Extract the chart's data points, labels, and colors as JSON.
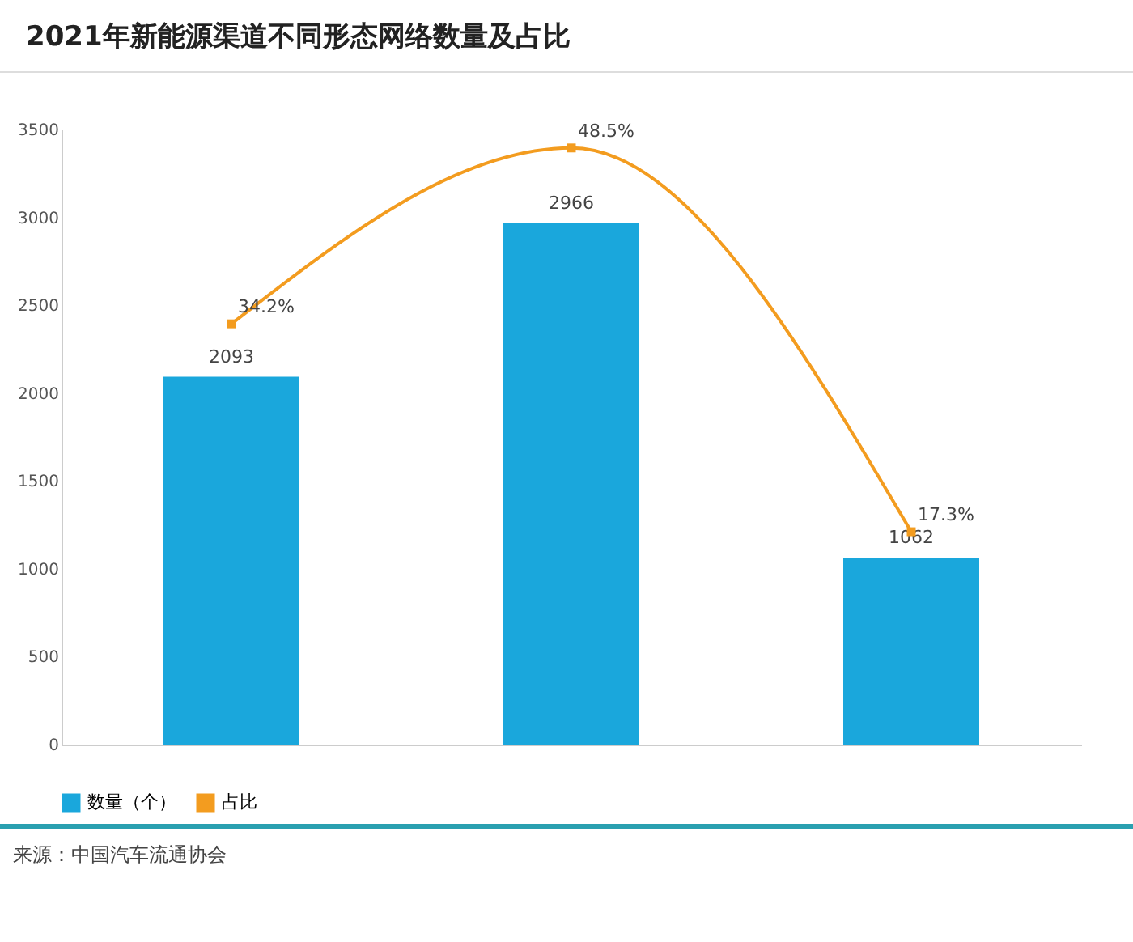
{
  "chart_data": {
    "type": "bar",
    "title": "2021年新能源渠道不同形态网络数量及占比",
    "categories": [
      null,
      null,
      null
    ],
    "series": [
      {
        "name": "数量（个）",
        "color": "#1aa7dc",
        "values": [
          2093,
          2966,
          1062
        ],
        "value_labels": [
          "2093",
          "2966",
          "1062"
        ]
      },
      {
        "name": "占比",
        "type": "line",
        "axis": "y2",
        "color": "#f39c1f",
        "values": [
          34.2,
          48.5,
          17.3
        ],
        "value_labels": [
          "34.2%",
          "48.5%",
          "17.3%"
        ]
      }
    ],
    "ylim": [
      0,
      3500
    ],
    "yticks": [
      0,
      500,
      1000,
      1500,
      2000,
      2500,
      3000,
      3500
    ],
    "y2lim": [
      0,
      50
    ],
    "legend": "bottom",
    "marker": "square",
    "annotations": [
      "来源：中国汽车流通协会"
    ]
  }
}
